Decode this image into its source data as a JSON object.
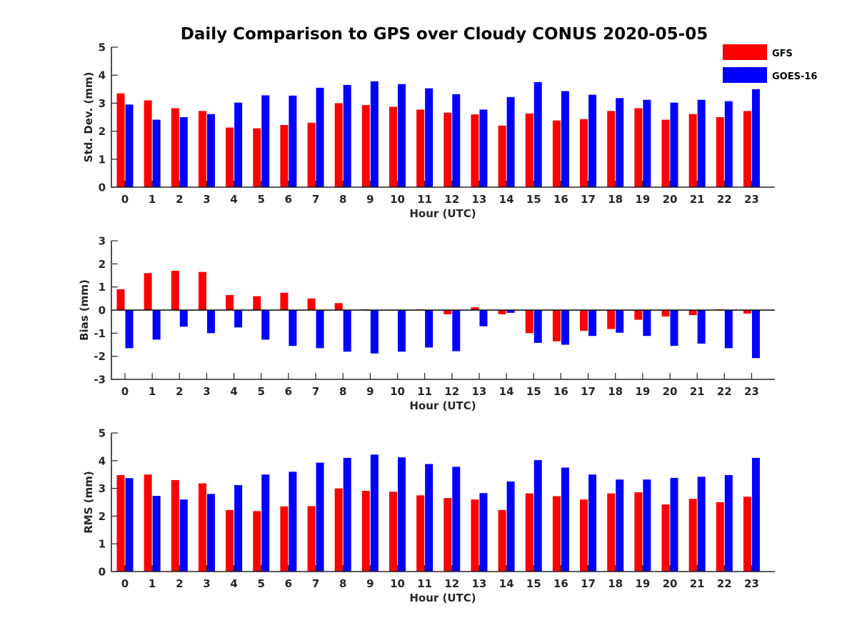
{
  "title": "Daily Comparison to GPS over Cloudy CONUS 2020-05-05",
  "colors": {
    "GFS": "#ff0000",
    "GOES-16": "#0000ff",
    "axis": "#262626"
  },
  "legend": [
    "GFS",
    "GOES-16"
  ],
  "chart_data": [
    {
      "type": "bar",
      "ylabel": "Std. Dev. (mm)",
      "xlabel": "Hour (UTC)",
      "ylim": [
        0,
        5
      ],
      "yticks": [
        "0",
        "1",
        "2",
        "3",
        "4",
        "5"
      ],
      "categories": [
        "0",
        "1",
        "2",
        "3",
        "4",
        "5",
        "6",
        "7",
        "8",
        "9",
        "10",
        "11",
        "12",
        "13",
        "14",
        "15",
        "16",
        "17",
        "18",
        "19",
        "20",
        "21",
        "22",
        "23"
      ],
      "series": [
        {
          "name": "GFS",
          "values": [
            3.35,
            3.1,
            2.82,
            2.72,
            2.13,
            2.1,
            2.22,
            2.3,
            3.0,
            2.93,
            2.87,
            2.77,
            2.66,
            2.6,
            2.2,
            2.63,
            2.38,
            2.43,
            2.72,
            2.82,
            2.41,
            2.61,
            2.5,
            2.72
          ]
        },
        {
          "name": "GOES-16",
          "values": [
            2.95,
            2.41,
            2.5,
            2.61,
            3.02,
            3.28,
            3.27,
            3.55,
            3.65,
            3.78,
            3.68,
            3.53,
            3.32,
            2.77,
            3.22,
            3.75,
            3.43,
            3.3,
            3.18,
            3.12,
            3.02,
            3.12,
            3.07,
            3.5
          ]
        }
      ]
    },
    {
      "type": "bar",
      "ylabel": "Bias (mm)",
      "xlabel": "Hour (UTC)",
      "ylim": [
        -3,
        3
      ],
      "yticks": [
        "-3",
        "-2",
        "-1",
        "0",
        "1",
        "2",
        "3"
      ],
      "categories": [
        "0",
        "1",
        "2",
        "3",
        "4",
        "5",
        "6",
        "7",
        "8",
        "9",
        "10",
        "11",
        "12",
        "13",
        "14",
        "15",
        "16",
        "17",
        "18",
        "19",
        "20",
        "21",
        "22",
        "23"
      ],
      "series": [
        {
          "name": "GFS",
          "values": [
            0.9,
            1.6,
            1.7,
            1.65,
            0.65,
            0.6,
            0.75,
            0.5,
            0.3,
            0.03,
            0.0,
            0.03,
            -0.18,
            0.12,
            -0.18,
            -1.0,
            -1.35,
            -0.9,
            -0.82,
            -0.42,
            -0.28,
            -0.22,
            0.03,
            -0.15
          ]
        },
        {
          "name": "GOES-16",
          "values": [
            -1.65,
            -1.28,
            -0.72,
            -1.0,
            -0.75,
            -1.28,
            -1.55,
            -1.65,
            -1.8,
            -1.88,
            -1.8,
            -1.62,
            -1.78,
            -0.7,
            -0.12,
            -1.42,
            -1.5,
            -1.12,
            -0.98,
            -1.12,
            -1.55,
            -1.45,
            -1.65,
            -2.08
          ]
        }
      ]
    },
    {
      "type": "bar",
      "ylabel": "RMS (mm)",
      "xlabel": "Hour (UTC)",
      "ylim": [
        0,
        5
      ],
      "yticks": [
        "0",
        "1",
        "2",
        "3",
        "4",
        "5"
      ],
      "categories": [
        "0",
        "1",
        "2",
        "3",
        "4",
        "5",
        "6",
        "7",
        "8",
        "9",
        "10",
        "11",
        "12",
        "13",
        "14",
        "15",
        "16",
        "17",
        "18",
        "19",
        "20",
        "21",
        "22",
        "23"
      ],
      "series": [
        {
          "name": "GFS",
          "values": [
            3.48,
            3.5,
            3.3,
            3.18,
            2.22,
            2.18,
            2.35,
            2.36,
            3.0,
            2.91,
            2.88,
            2.75,
            2.65,
            2.6,
            2.22,
            2.82,
            2.72,
            2.6,
            2.82,
            2.86,
            2.42,
            2.62,
            2.5,
            2.7
          ]
        },
        {
          "name": "GOES-16",
          "values": [
            3.37,
            2.73,
            2.6,
            2.8,
            3.12,
            3.5,
            3.6,
            3.93,
            4.1,
            4.22,
            4.12,
            3.88,
            3.78,
            2.83,
            3.25,
            4.02,
            3.75,
            3.5,
            3.32,
            3.32,
            3.38,
            3.42,
            3.48,
            4.1
          ]
        }
      ]
    }
  ]
}
